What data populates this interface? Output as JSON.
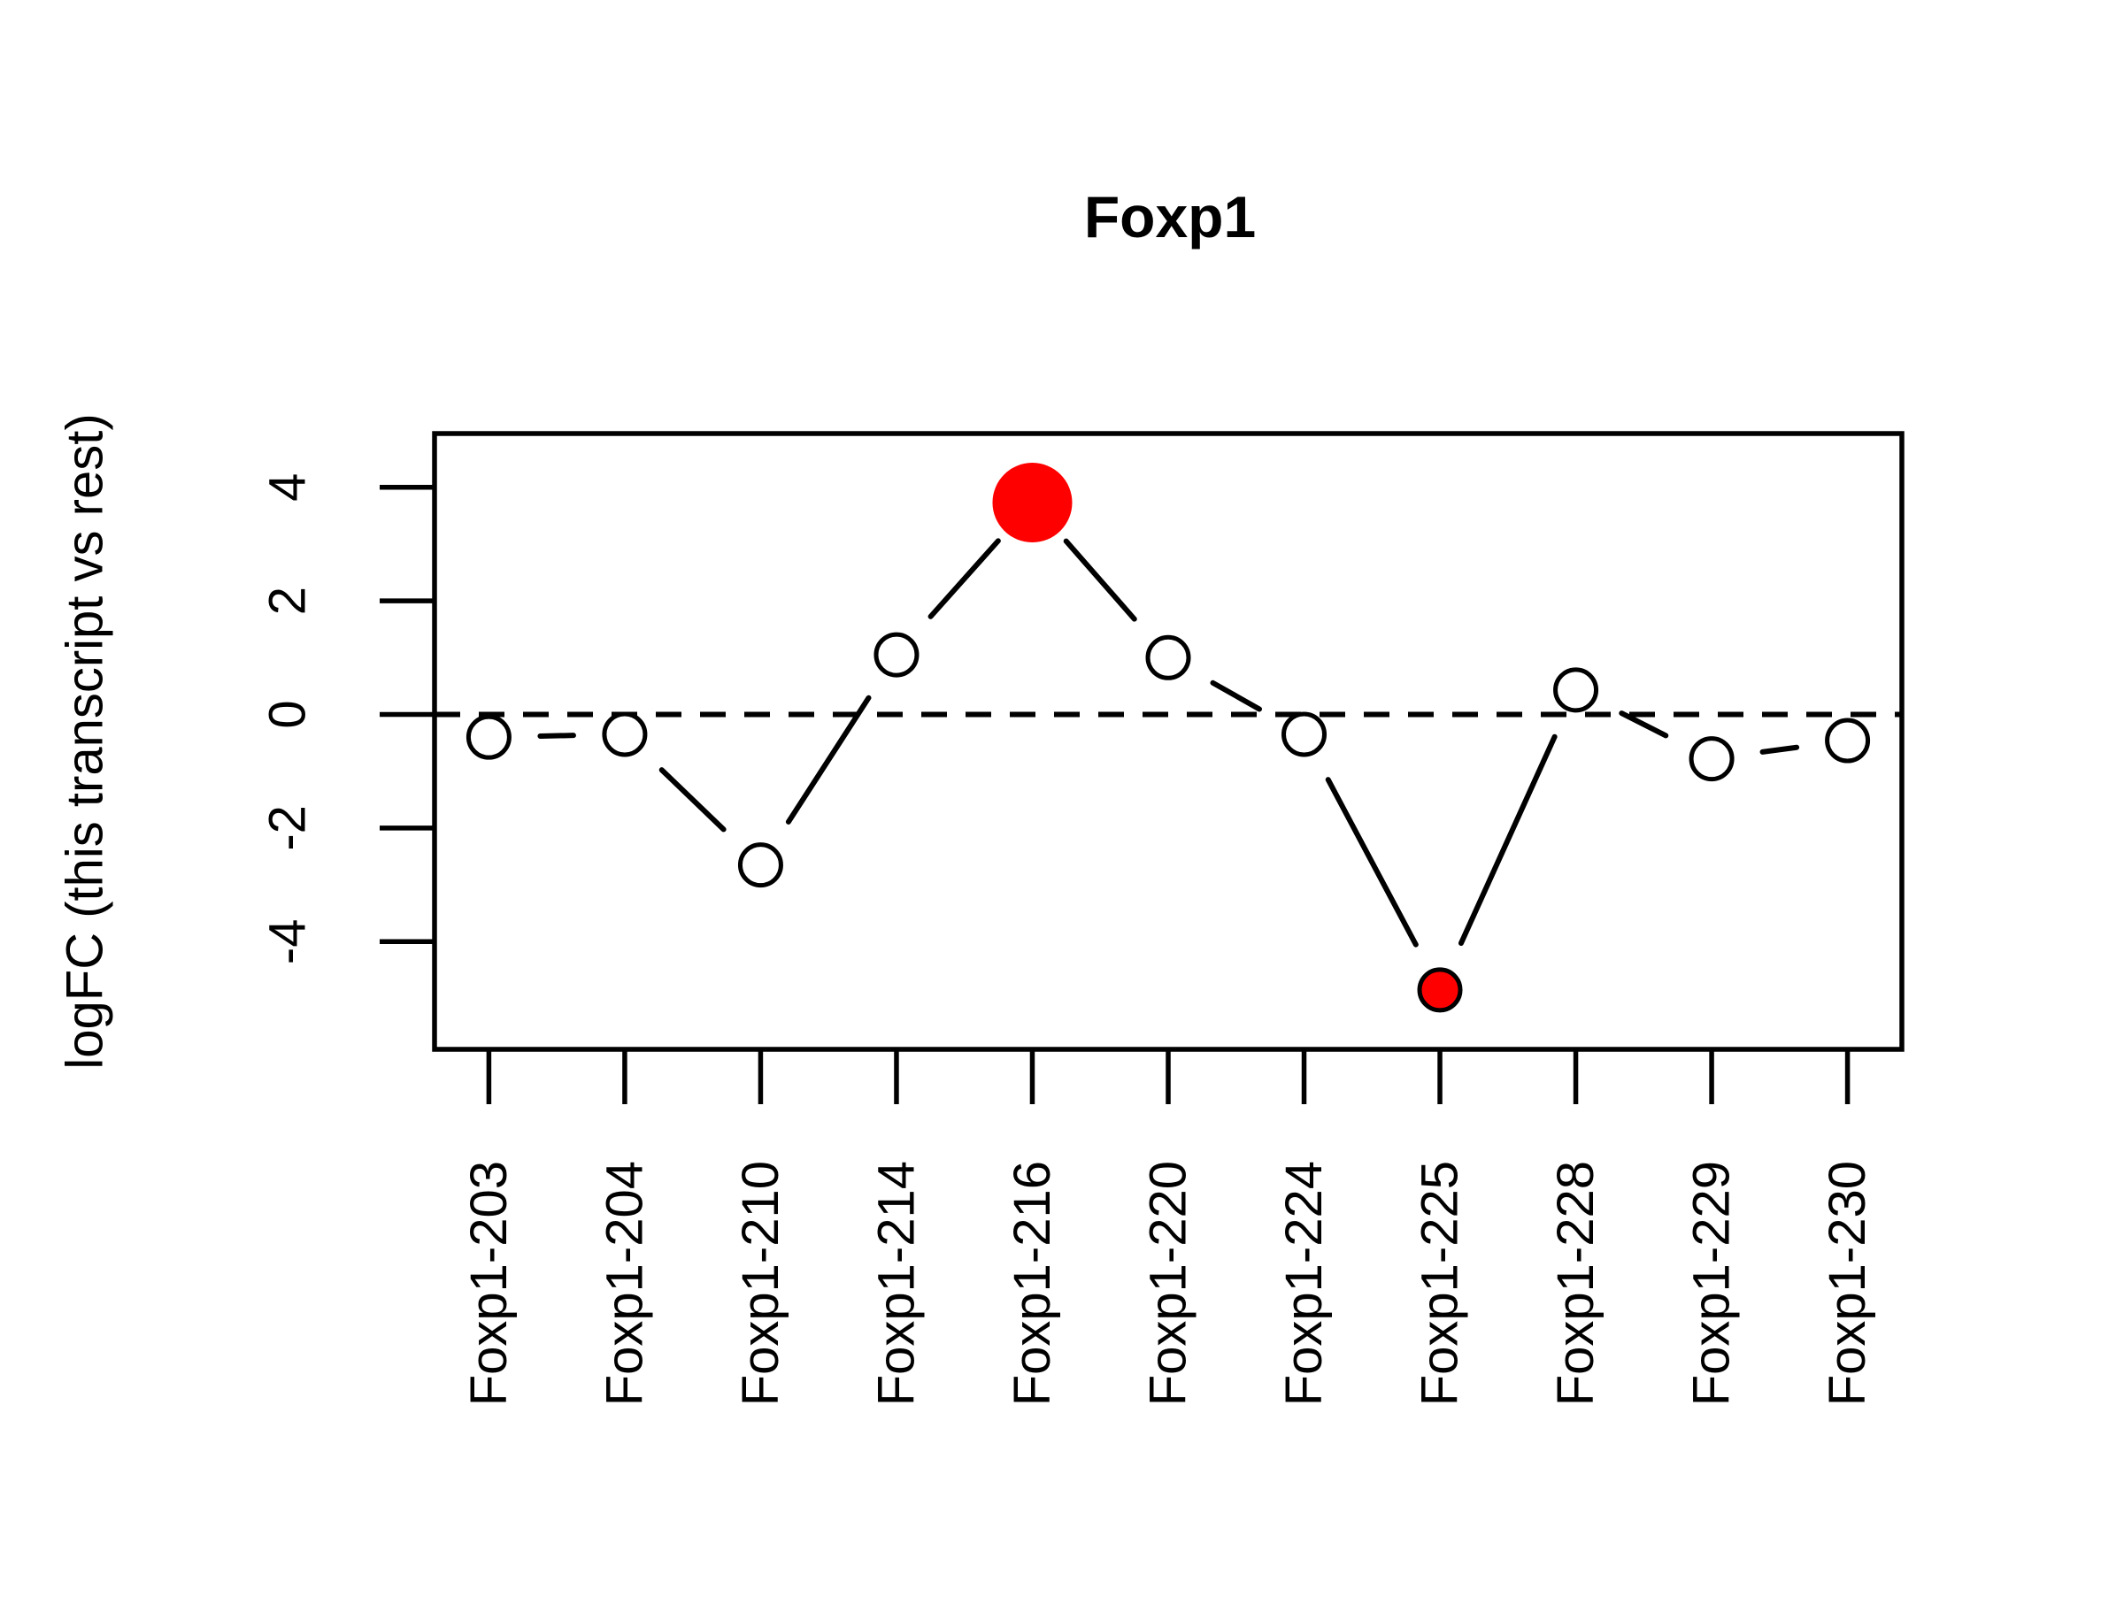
{
  "figure": {
    "title": "Foxp1",
    "y_axis": {
      "label": "logFC (this transcript vs rest)",
      "ticks": [
        4,
        2,
        0,
        -2,
        -4
      ]
    },
    "x_axis": {
      "labels": [
        "Foxp1-203",
        "Foxp1-204",
        "Foxp1-210",
        "Foxp1-214",
        "Foxp1-216",
        "Foxp1-220",
        "Foxp1-224",
        "Foxp1-225",
        "Foxp1-228",
        "Foxp1-229",
        "Foxp1-230"
      ]
    },
    "reference_line": {
      "y": 0,
      "style": "dashed"
    },
    "colors": {
      "highlight": "#FF0000",
      "axis": "#000000",
      "marker_fill": "#FFFFFF",
      "background": "#FFFFFF"
    },
    "points": [
      {
        "transcript": "Foxp1-203",
        "logFC": -0.4,
        "marker": "open"
      },
      {
        "transcript": "Foxp1-204",
        "logFC": -0.35,
        "marker": "open"
      },
      {
        "transcript": "Foxp1-210",
        "logFC": -2.65,
        "marker": "open"
      },
      {
        "transcript": "Foxp1-214",
        "logFC": 1.05,
        "marker": "open"
      },
      {
        "transcript": "Foxp1-216",
        "logFC": 3.73,
        "marker": "red-large"
      },
      {
        "transcript": "Foxp1-220",
        "logFC": 1.0,
        "marker": "open"
      },
      {
        "transcript": "Foxp1-224",
        "logFC": -0.35,
        "marker": "open"
      },
      {
        "transcript": "Foxp1-225",
        "logFC": -4.85,
        "marker": "red-ringed"
      },
      {
        "transcript": "Foxp1-228",
        "logFC": 0.43,
        "marker": "open"
      },
      {
        "transcript": "Foxp1-229",
        "logFC": -0.78,
        "marker": "open"
      },
      {
        "transcript": "Foxp1-230",
        "logFC": -0.46,
        "marker": "open"
      }
    ]
  },
  "chart_data": {
    "type": "line",
    "title": "Foxp1",
    "xlabel": "",
    "ylabel": "logFC (this transcript vs rest)",
    "categories": [
      "Foxp1-203",
      "Foxp1-204",
      "Foxp1-210",
      "Foxp1-214",
      "Foxp1-216",
      "Foxp1-220",
      "Foxp1-224",
      "Foxp1-225",
      "Foxp1-228",
      "Foxp1-229",
      "Foxp1-230"
    ],
    "values": [
      -0.4,
      -0.35,
      -2.65,
      1.05,
      3.73,
      1.0,
      -0.35,
      -4.85,
      0.43,
      -0.78,
      -0.46
    ],
    "yticks": [
      -4,
      -2,
      0,
      2,
      4
    ],
    "ylim": [
      -5.9,
      4.94
    ],
    "xlim": [
      0.6,
      11.4
    ],
    "grid": "off",
    "legend": "none",
    "zero_line": "dashed-horizontal-at-0",
    "marker": "open-circle",
    "line_style": "black-segments-with-gaps-around-markers",
    "x_tick_label_rotation_deg": 90,
    "highlighted_points": [
      {
        "category": "Foxp1-216",
        "value": 3.73,
        "color": "#FF0000",
        "size": "large"
      },
      {
        "category": "Foxp1-225",
        "value": -4.85,
        "color": "#FF0000",
        "size": "normal"
      }
    ]
  }
}
